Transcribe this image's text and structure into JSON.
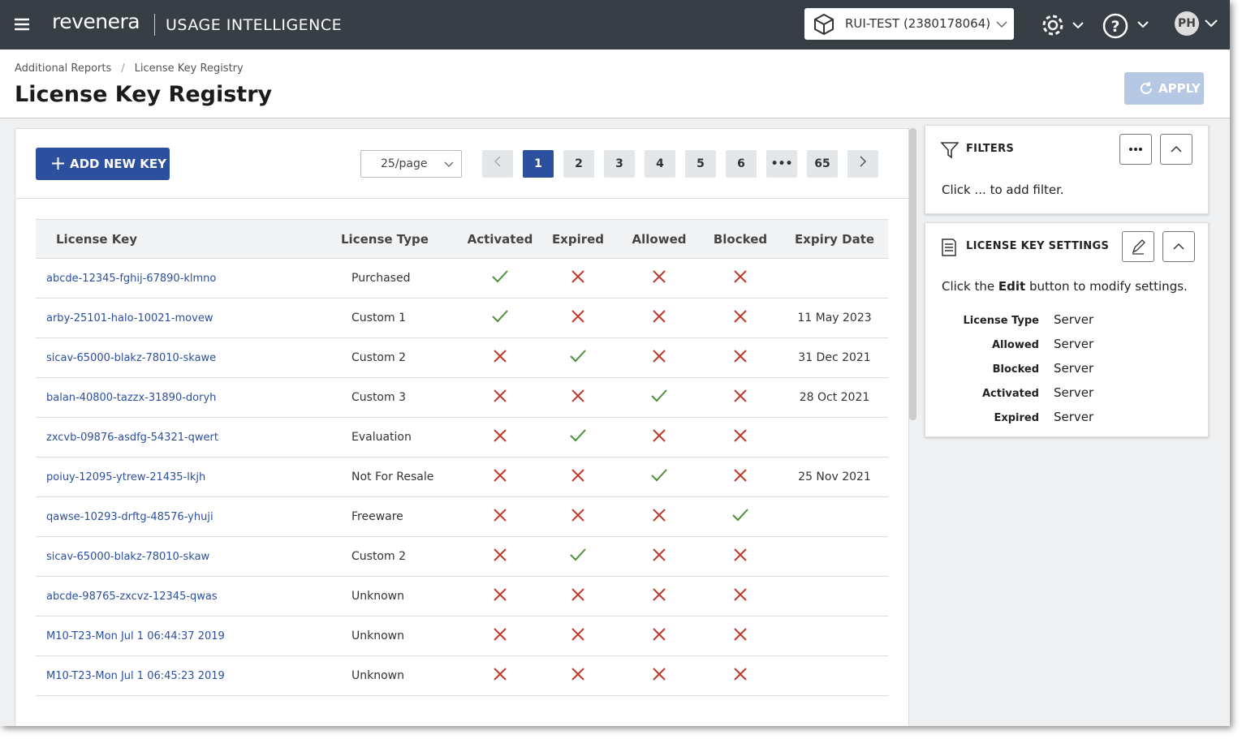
{
  "header": {
    "brand": "revenera",
    "product": "USAGE INTELLIGENCE",
    "project": "RUI-TEST (2380178064)",
    "user": "PH"
  },
  "breadcrumb": [
    "Additional Reports",
    "License Key Registry"
  ],
  "title": "License Key Registry",
  "apply": "APPLY",
  "toolbar": {
    "add": "ADD NEW KEY",
    "page_size": "25/page",
    "pages": [
      1,
      2,
      3,
      4,
      5,
      6,
      "•••",
      65
    ]
  },
  "table": {
    "columns": [
      "License Key",
      "License Type",
      "Activated",
      "Expired",
      "Allowed",
      "Blocked",
      "Expiry Date"
    ],
    "rows": [
      [
        "abcde-12345-fghij-67890-klmno",
        "Purchased",
        true,
        false,
        false,
        false,
        null
      ],
      [
        "arby-25101-halo-10021-movew",
        "Custom 1",
        true,
        false,
        false,
        false,
        "11 May 2023"
      ],
      [
        "sicav-65000-blakz-78010-skawe",
        "Custom 2",
        false,
        true,
        false,
        false,
        "31 Dec 2021"
      ],
      [
        "balan-40800-tazzx-31890-doryh",
        "Custom 3",
        false,
        false,
        true,
        false,
        "28 Oct 2021"
      ],
      [
        "zxcvb-09876-asdfg-54321-qwert",
        "Evaluation",
        false,
        true,
        false,
        false,
        null
      ],
      [
        "poiuy-12095-ytrew-21435-lkjh",
        "Not For Resale",
        false,
        false,
        true,
        false,
        "25 Nov 2021"
      ],
      [
        "qawse-10293-drftg-48576-yhuji",
        "Freeware",
        false,
        false,
        false,
        true,
        null
      ],
      [
        "sicav-65000-blakz-78010-skaw",
        "Custom 2",
        false,
        true,
        false,
        false,
        null
      ],
      [
        "abcde-98765-zxcvz-12345-qwas",
        "Unknown",
        false,
        false,
        false,
        false,
        null
      ],
      [
        "M10-T23-Mon Jul 1 06:44:37 2019",
        "Unknown",
        false,
        false,
        false,
        false,
        null
      ],
      [
        "M10-T23-Mon Jul 1 06:45:23 2019",
        "Unknown",
        false,
        false,
        false,
        false,
        null
      ]
    ]
  },
  "filters": {
    "title": "FILTERS",
    "hint": "Click ... to add filter."
  },
  "settings": {
    "title": "LICENSE KEY SETTINGS",
    "hint": [
      "Click the",
      "Edit",
      "button to modify settings."
    ],
    "rows": [
      [
        "License Type",
        "Server"
      ],
      [
        "Allowed",
        "Server"
      ],
      [
        "Blocked",
        "Server"
      ],
      [
        "Activated",
        "Server"
      ],
      [
        "Expired",
        "Server"
      ]
    ]
  }
}
